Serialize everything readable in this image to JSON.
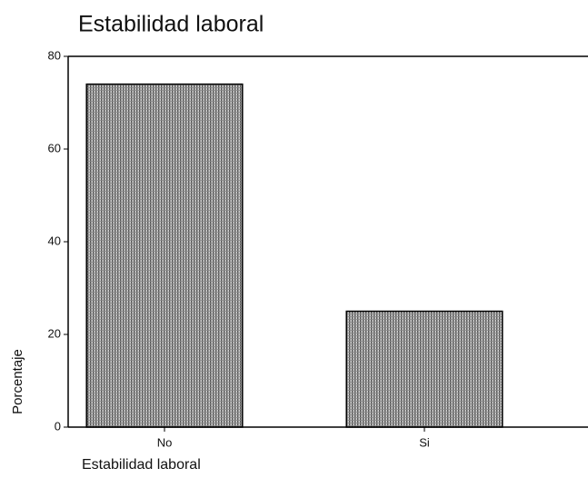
{
  "chart_data": {
    "type": "bar",
    "title": "Estabilidad laboral",
    "x_label": "Estabilidad laboral",
    "y_label": "Porcentaje",
    "categories": [
      "No",
      "Si"
    ],
    "values": [
      74,
      25
    ],
    "color": "#9a9a9a",
    "ylim": [
      0,
      80
    ],
    "yticks": [
      0,
      20,
      40,
      60,
      80
    ]
  }
}
